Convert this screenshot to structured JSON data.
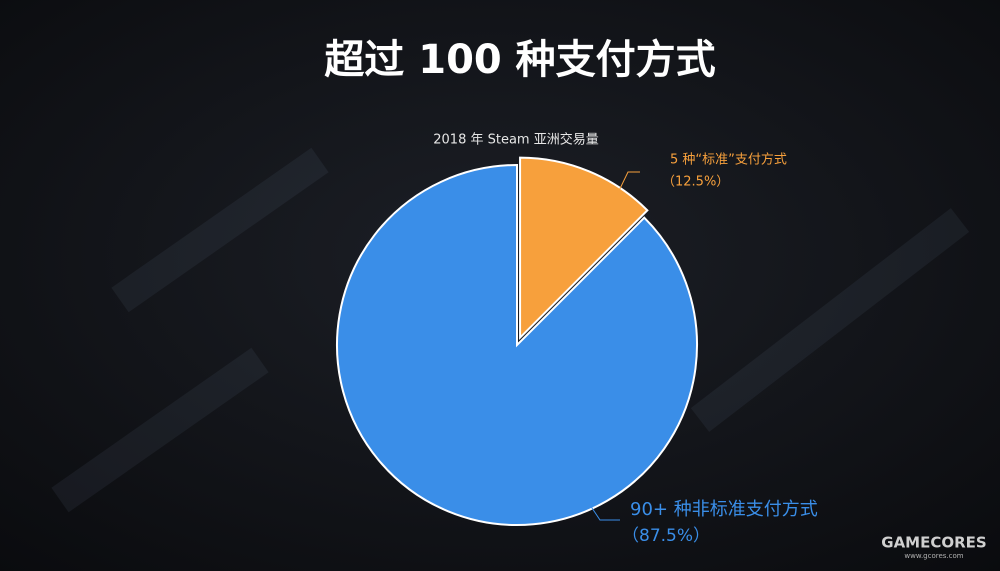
{
  "chart_data": {
    "type": "pie",
    "title": "超过 100 种支付方式",
    "subtitle": "2018 年 Steam 亚洲交易量",
    "categories": [
      "5 种“标准”支付方式",
      "90+ 种非标准支付方式"
    ],
    "values": [
      12.5,
      87.5
    ],
    "value_labels": [
      "（12.5%）",
      "（87.5%）"
    ],
    "colors": [
      "#f7a03c",
      "#3a8ee8"
    ]
  },
  "watermark": {
    "brand": "GAMECORES",
    "url": "www.gcores.com"
  }
}
